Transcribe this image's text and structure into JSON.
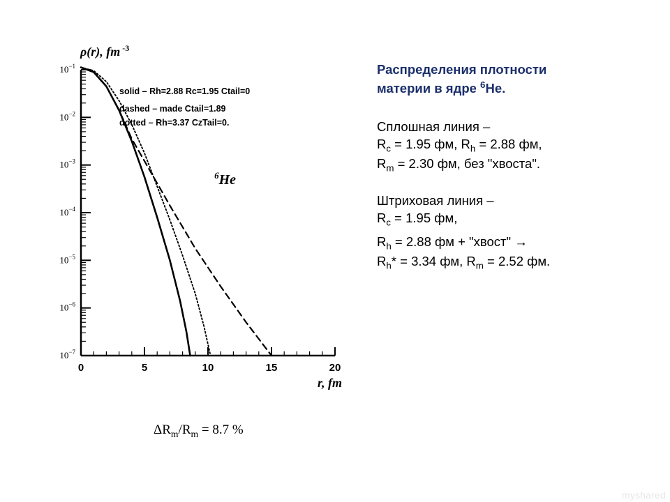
{
  "chart": {
    "type": "line-log",
    "ylabel_html": "ρ(r), fm<span class='exp'>&nbsp;-3</span>",
    "xlabel": "r, fm",
    "legend": {
      "line1": "solid – Rh=2.88 Rc=1.95 Ctail=0",
      "line2": "dashed – made Ctail=1.89",
      "line3": "dotted – Rh=3.37 CzTail=0."
    },
    "he_label_sup": "6",
    "he_label_main": "He",
    "xlim": [
      0,
      20
    ],
    "xtick_step": 5,
    "y_exp_min": -7,
    "y_exp_max": -1,
    "series": {
      "solid": {
        "stroke": "#000000",
        "width": 2.6,
        "dash": "",
        "pts": [
          [
            0,
            -0.95
          ],
          [
            1,
            -1.05
          ],
          [
            2,
            -1.35
          ],
          [
            3,
            -1.85
          ],
          [
            4,
            -2.5
          ],
          [
            5,
            -3.25
          ],
          [
            6,
            -4.1
          ],
          [
            7,
            -5.0
          ],
          [
            7.8,
            -5.85
          ],
          [
            8.3,
            -6.5
          ],
          [
            8.6,
            -7.0
          ]
        ]
      },
      "dotted": {
        "stroke": "#000000",
        "width": 1.9,
        "dash": "2 3",
        "pts": [
          [
            0,
            -0.95
          ],
          [
            1,
            -1.02
          ],
          [
            2,
            -1.25
          ],
          [
            3,
            -1.65
          ],
          [
            4,
            -2.15
          ],
          [
            5,
            -2.75
          ],
          [
            6,
            -3.45
          ],
          [
            7,
            -4.15
          ],
          [
            8,
            -4.9
          ],
          [
            9,
            -5.7
          ],
          [
            9.7,
            -6.4
          ],
          [
            10.2,
            -7.0
          ]
        ]
      },
      "dashed": {
        "stroke": "#000000",
        "width": 2.2,
        "dash": "9 6",
        "pts": [
          [
            0,
            -0.95
          ],
          [
            1,
            -1.05
          ],
          [
            2,
            -1.35
          ],
          [
            3,
            -1.85
          ],
          [
            4,
            -2.45
          ],
          [
            5.5,
            -3.15
          ],
          [
            7,
            -3.85
          ],
          [
            9,
            -4.75
          ],
          [
            11,
            -5.55
          ],
          [
            13,
            -6.3
          ],
          [
            15,
            -7.0
          ]
        ]
      }
    },
    "axis_color": "#000000",
    "background_color": "#ffffff"
  },
  "text": {
    "title_l1": "Распределения плотности",
    "title_l2": "материи в ядре ",
    "title_sup": "6",
    "title_elem": "He.",
    "p1_l1": "Сплошная линия –",
    "p1_l2a": "R",
    "p1_l2a_sub": "c",
    "p1_l2b": " = 1.95 фм, R",
    "p1_l2b_sub": "h",
    "p1_l2c": " = 2.88 фм,",
    "p1_l3a": "R",
    "p1_l3a_sub": "m",
    "p1_l3b": " = 2.30 фм, без \"хвоста\".",
    "p2_l1": "Штриховая линия –",
    "p2_l2a": "R",
    "p2_l2a_sub": "c",
    "p2_l2b": " = 1.95 фм,",
    "p2_l3a": "R",
    "p2_l3a_sub": "h",
    "p2_l3b": " = 2.88 фм + \"хвост\" →",
    "p2_l4a": "R",
    "p2_l4a_sub": "h",
    "p2_l4b": "* = 3.34 фм, R",
    "p2_l4b_sub": "m",
    "p2_l4c": " = 2.52 фм."
  },
  "formula": {
    "delta": "Δ",
    "R": "R",
    "sub": "m",
    "slash": "/R",
    "sub2": "m",
    "rest": " = 8.7 %"
  },
  "watermark": "myshared"
}
